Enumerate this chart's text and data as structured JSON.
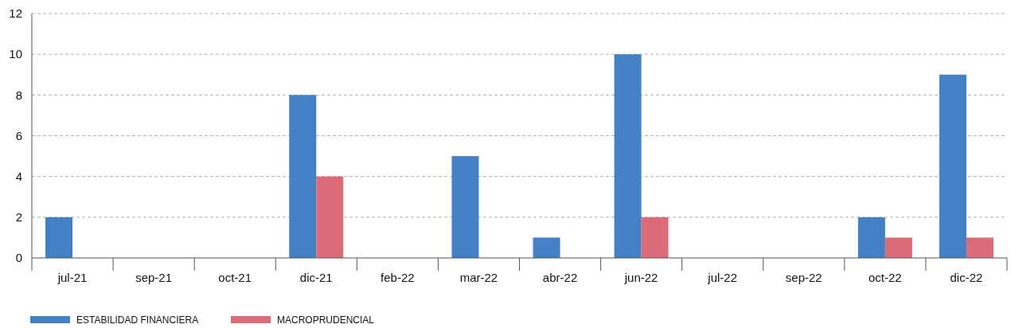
{
  "chart_data": {
    "type": "bar",
    "categories": [
      "jul-21",
      "sep-21",
      "oct-21",
      "dic-21",
      "feb-22",
      "mar-22",
      "abr-22",
      "jun-22",
      "jul-22",
      "sep-22",
      "oct-22",
      "dic-22"
    ],
    "series": [
      {
        "name": "ESTABILIDAD FINANCIERA",
        "color": "#4480c5",
        "values": [
          2,
          0,
          0,
          8,
          0,
          5,
          1,
          10,
          0,
          0,
          2,
          9
        ]
      },
      {
        "name": "MACROPRUDENCIAL",
        "color": "#dc6b7a",
        "values": [
          0,
          0,
          0,
          4,
          0,
          0,
          0,
          2,
          0,
          0,
          1,
          1
        ]
      }
    ],
    "ylim": [
      0,
      12
    ],
    "yticks": [
      0,
      2,
      4,
      6,
      8,
      10,
      12
    ],
    "grid": "y",
    "legend": "bottom"
  }
}
